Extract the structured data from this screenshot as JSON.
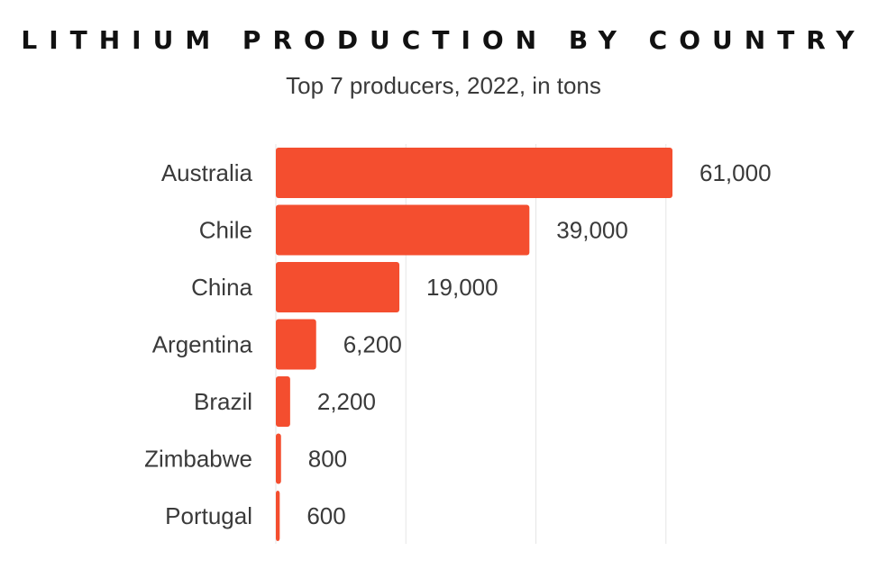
{
  "chart_data": {
    "type": "bar",
    "orientation": "horizontal",
    "title": "LITHIUM PRODUCTION BY COUNTRY",
    "subtitle": "Top 7 producers, 2022, in tons",
    "categories": [
      "Australia",
      "Chile",
      "China",
      "Argentina",
      "Brazil",
      "Zimbabwe",
      "Portugal"
    ],
    "values": [
      61000,
      39000,
      19000,
      6200,
      2200,
      800,
      600
    ],
    "value_labels": [
      "61,000",
      "39,000",
      "19,000",
      "6,200",
      "2,200",
      "800",
      "600"
    ],
    "xlim": [
      0,
      61000
    ],
    "x_gridlines": [
      20000,
      40000,
      60000
    ],
    "grid": true,
    "bar_color": "#f44e2f",
    "text_color": "#3a3a3a",
    "grid_color": "#e6e6e6"
  }
}
